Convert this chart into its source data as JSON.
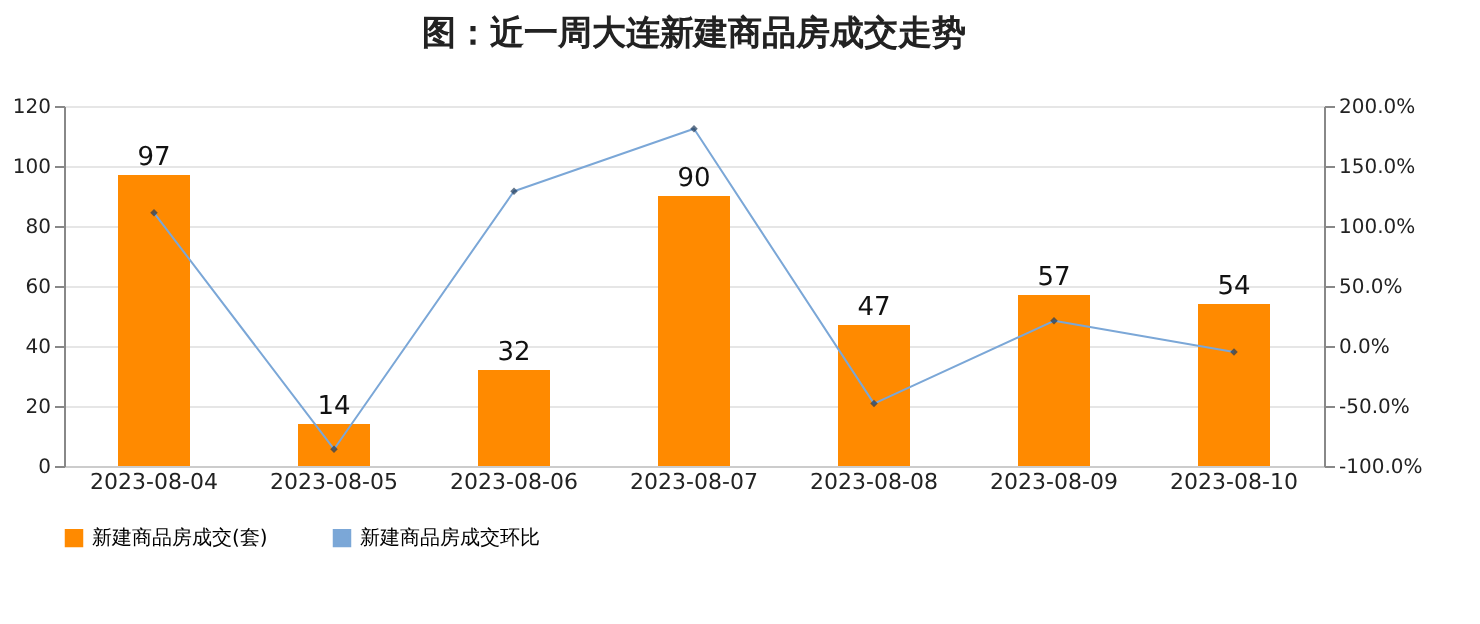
{
  "chart_data": {
    "type": "bar",
    "title": "图：近一周大连新建商品房成交走势",
    "categories": [
      "2023-08-04",
      "2023-08-05",
      "2023-08-06",
      "2023-08-07",
      "2023-08-08",
      "2023-08-09",
      "2023-08-10"
    ],
    "series": [
      {
        "name": "新建商品房成交(套)",
        "color": "#ff8a00",
        "values": [
          97,
          14,
          32,
          90,
          47,
          57,
          54
        ],
        "value_labels": [
          "97",
          "14",
          "32",
          "90",
          "47",
          "57",
          "54"
        ]
      },
      {
        "name": "新建商品房成交环比",
        "type": "line",
        "axis": "y2",
        "color": "#7ba7d7",
        "marker": "diamond",
        "values": [
          111,
          -86,
          129,
          181,
          -48,
          21,
          -5
        ]
      }
    ],
    "ylim": [
      0,
      120
    ],
    "yticks": [
      0,
      20,
      40,
      60,
      80,
      100,
      120
    ],
    "y2lim": [
      -100,
      200
    ],
    "y2ticks": [
      {
        "value": -100,
        "label": "-100.0%"
      },
      {
        "value": -50,
        "label": "-50.0%"
      },
      {
        "value": 0,
        "label": "0.0%"
      },
      {
        "value": 50,
        "label": "50.0%"
      },
      {
        "value": 100,
        "label": "100.0%"
      },
      {
        "value": 150,
        "label": "150.0%"
      },
      {
        "value": 200,
        "label": "200.0%"
      }
    ],
    "grid": "y",
    "legend": "bottom"
  }
}
